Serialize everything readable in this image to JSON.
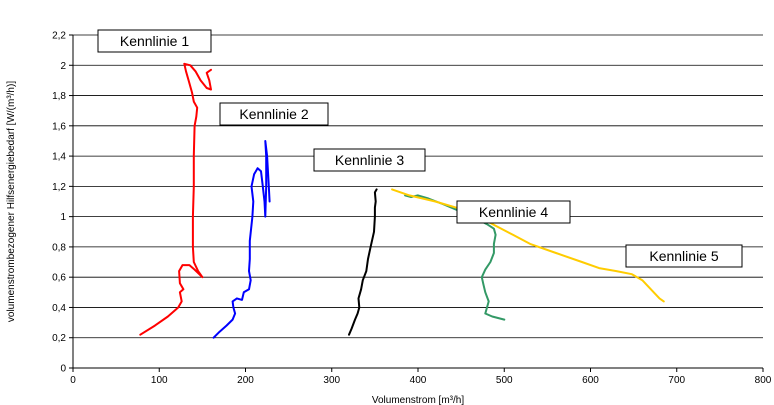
{
  "chart_data": {
    "type": "line",
    "title": "",
    "xlabel": "Volumenstrom [m³/h]",
    "ylabel": "volumenstrombezogener Hilfsenergiebedarf [W/(m³/h)]",
    "xlim": [
      0,
      800
    ],
    "ylim": [
      0,
      2.2
    ],
    "x_ticks": [
      0,
      100,
      200,
      300,
      400,
      500,
      600,
      700,
      800
    ],
    "y_ticks": [
      "0",
      "0,2",
      "0,4",
      "0,6",
      "0,8",
      "1",
      "1,2",
      "1,4",
      "1,6",
      "1,8",
      "2",
      "2,2"
    ],
    "grid": "horizontal",
    "series": [
      {
        "name": "Kennlinie 1",
        "color": "#ff0000",
        "points": [
          [
            78,
            0.22
          ],
          [
            95,
            0.28
          ],
          [
            110,
            0.34
          ],
          [
            122,
            0.4
          ],
          [
            126,
            0.44
          ],
          [
            124,
            0.5
          ],
          [
            128,
            0.52
          ],
          [
            124,
            0.56
          ],
          [
            123,
            0.64
          ],
          [
            127,
            0.68
          ],
          [
            135,
            0.68
          ],
          [
            141,
            0.65
          ],
          [
            150,
            0.6
          ],
          [
            145,
            0.64
          ],
          [
            140,
            0.7
          ],
          [
            139,
            0.8
          ],
          [
            139,
            1.0
          ],
          [
            140,
            1.2
          ],
          [
            140,
            1.4
          ],
          [
            141,
            1.6
          ],
          [
            143,
            1.66
          ],
          [
            144,
            1.72
          ],
          [
            140,
            1.76
          ],
          [
            138,
            1.82
          ],
          [
            134,
            1.9
          ],
          [
            131,
            1.96
          ],
          [
            129,
            2.01
          ],
          [
            136,
            2.0
          ],
          [
            142,
            1.96
          ],
          [
            148,
            1.9
          ],
          [
            155,
            1.85
          ],
          [
            160,
            1.84
          ],
          [
            158,
            1.9
          ],
          [
            155,
            1.95
          ],
          [
            160,
            1.97
          ]
        ]
      },
      {
        "name": "Kennlinie 2",
        "color": "#0000ff",
        "points": [
          [
            163,
            0.2
          ],
          [
            170,
            0.24
          ],
          [
            178,
            0.28
          ],
          [
            185,
            0.32
          ],
          [
            188,
            0.36
          ],
          [
            186,
            0.4
          ],
          [
            185,
            0.44
          ],
          [
            190,
            0.46
          ],
          [
            196,
            0.45
          ],
          [
            198,
            0.5
          ],
          [
            204,
            0.52
          ],
          [
            206,
            0.58
          ],
          [
            204,
            0.64
          ],
          [
            205,
            0.72
          ],
          [
            205,
            0.84
          ],
          [
            208,
            1.0
          ],
          [
            209,
            1.1
          ],
          [
            207,
            1.2
          ],
          [
            210,
            1.28
          ],
          [
            214,
            1.32
          ],
          [
            218,
            1.3
          ],
          [
            220,
            1.2
          ],
          [
            222,
            1.1
          ],
          [
            223,
            1.0
          ],
          [
            224,
            1.2
          ],
          [
            224,
            1.4
          ],
          [
            223,
            1.5
          ],
          [
            225,
            1.4
          ],
          [
            227,
            1.2
          ],
          [
            228,
            1.1
          ]
        ]
      },
      {
        "name": "Kennlinie 3",
        "color": "#000000",
        "points": [
          [
            320,
            0.22
          ],
          [
            323,
            0.26
          ],
          [
            327,
            0.32
          ],
          [
            330,
            0.36
          ],
          [
            332,
            0.4
          ],
          [
            331,
            0.46
          ],
          [
            334,
            0.52
          ],
          [
            336,
            0.58
          ],
          [
            340,
            0.64
          ],
          [
            342,
            0.72
          ],
          [
            345,
            0.8
          ],
          [
            349,
            0.9
          ],
          [
            350,
            1.0
          ],
          [
            350,
            1.06
          ],
          [
            351,
            1.1
          ],
          [
            350,
            1.16
          ],
          [
            352,
            1.18
          ]
        ]
      },
      {
        "name": "Kennlinie 4",
        "color": "#339966",
        "points": [
          [
            385,
            1.14
          ],
          [
            392,
            1.13
          ],
          [
            400,
            1.14
          ],
          [
            412,
            1.12
          ],
          [
            430,
            1.08
          ],
          [
            455,
            1.02
          ],
          [
            470,
            0.98
          ],
          [
            480,
            0.95
          ],
          [
            488,
            0.92
          ],
          [
            490,
            0.88
          ],
          [
            488,
            0.82
          ],
          [
            488,
            0.76
          ],
          [
            484,
            0.7
          ],
          [
            478,
            0.65
          ],
          [
            474,
            0.6
          ],
          [
            476,
            0.55
          ],
          [
            478,
            0.5
          ],
          [
            482,
            0.44
          ],
          [
            480,
            0.4
          ],
          [
            478,
            0.36
          ],
          [
            486,
            0.34
          ],
          [
            500,
            0.32
          ]
        ]
      },
      {
        "name": "Kennlinie 5",
        "color": "#ffcc00",
        "points": [
          [
            370,
            1.18
          ],
          [
            390,
            1.14
          ],
          [
            420,
            1.1
          ],
          [
            450,
            1.05
          ],
          [
            470,
            1.0
          ],
          [
            490,
            0.94
          ],
          [
            510,
            0.88
          ],
          [
            530,
            0.82
          ],
          [
            560,
            0.76
          ],
          [
            590,
            0.7
          ],
          [
            610,
            0.66
          ],
          [
            630,
            0.64
          ],
          [
            648,
            0.62
          ],
          [
            660,
            0.58
          ],
          [
            670,
            0.52
          ],
          [
            680,
            0.46
          ],
          [
            685,
            0.44
          ]
        ]
      }
    ],
    "annotations": [
      {
        "text": "Kennlinie 1",
        "series": 0
      },
      {
        "text": "Kennlinie 2",
        "series": 1
      },
      {
        "text": "Kennlinie 3",
        "series": 2
      },
      {
        "text": "Kennlinie 4",
        "series": 3
      },
      {
        "text": "Kennlinie 5",
        "series": 4
      }
    ]
  }
}
